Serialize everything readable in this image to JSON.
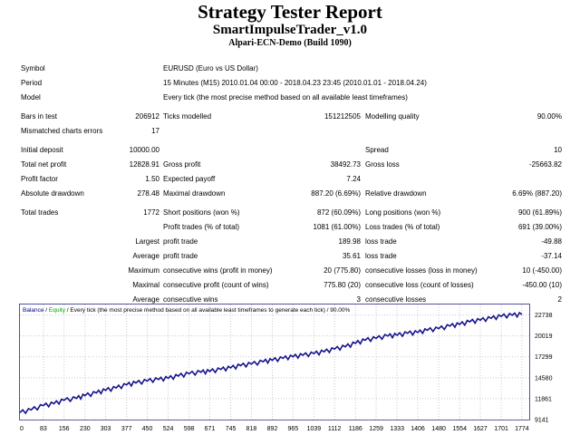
{
  "header": {
    "title": "Strategy Tester Report",
    "subtitle": "SmartImpulseTrader_v1.0",
    "server": "Alpari-ECN-Demo (Build 1090)"
  },
  "info": {
    "symbol_label": "Symbol",
    "symbol_value": "EURUSD (Euro vs US Dollar)",
    "period_label": "Period",
    "period_value": "15 Minutes (M15) 2010.01.04 00:00 - 2018.04.23 23:45 (2010.01.01 - 2018.04.24)",
    "model_label": "Model",
    "model_value": "Every tick (the most precise method based on all available least timeframes)"
  },
  "stats": {
    "bars_label": "Bars in test",
    "bars_value": "206912",
    "ticks_label": "Ticks modelled",
    "ticks_value": "151212505",
    "quality_label": "Modelling quality",
    "quality_value": "90.00%",
    "mismatch_label": "Mismatched charts errors",
    "mismatch_value": "17",
    "deposit_label": "Initial deposit",
    "deposit_value": "10000.00",
    "spread_label": "Spread",
    "spread_value": "10",
    "netprofit_label": "Total net profit",
    "netprofit_value": "12828.91",
    "grossprofit_label": "Gross profit",
    "grossprofit_value": "38492.73",
    "grossloss_label": "Gross loss",
    "grossloss_value": "-25663.82",
    "pf_label": "Profit factor",
    "pf_value": "1.50",
    "payoff_label": "Expected payoff",
    "payoff_value": "7.24",
    "absdd_label": "Absolute drawdown",
    "absdd_value": "278.48",
    "maxdd_label": "Maximal drawdown",
    "maxdd_value": "887.20 (6.69%)",
    "reldd_label": "Relative drawdown",
    "reldd_value": "6.69% (887.20)",
    "trades_label": "Total trades",
    "trades_value": "1772",
    "short_label": "Short positions (won %)",
    "short_value": "872 (60.09%)",
    "long_label": "Long positions (won %)",
    "long_value": "900 (61.89%)",
    "ptrades_label": "Profit trades (% of total)",
    "ptrades_value": "1081 (61.00%)",
    "ltrades_label": "Loss trades (% of total)",
    "ltrades_value": "691 (39.00%)",
    "largest_label": "Largest",
    "largest_profit_label": "profit trade",
    "largest_profit_value": "189.98",
    "largest_loss_label": "loss trade",
    "largest_loss_value": "-49.88",
    "average_label": "Average",
    "average_profit_label": "profit trade",
    "average_profit_value": "35.61",
    "average_loss_label": "loss trade",
    "average_loss_value": "-37.14",
    "maximum_label": "Maximum",
    "max_cw_label": "consecutive wins (profit in money)",
    "max_cw_value": "20 (775.80)",
    "max_cl_label": "consecutive losses (loss in money)",
    "max_cl_value": "10 (-450.00)",
    "maximal_label": "Maximal",
    "maximal_cp_label": "consecutive profit (count of wins)",
    "maximal_cp_value": "775.80 (20)",
    "maximal_closs_label": "consecutive loss (count of losses)",
    "maximal_closs_value": "-450.00 (10)",
    "avgc_label": "Average",
    "avgc_wins_label": "consecutive wins",
    "avgc_wins_value": "3",
    "avgc_losses_label": "consecutive losses",
    "avgc_losses_value": "2"
  },
  "chart_header": {
    "balance": "Balance",
    "sep1": " / ",
    "equity": "Equity",
    "rest": " / Every tick (the most precise method based on all available least timeframes to generate each tick) / 90.00%"
  },
  "colors": {
    "balance": "#00008b",
    "equity": "#00a000",
    "line": "#14148c",
    "grid": "#c8c8c8",
    "border": "#5050a0"
  },
  "chart_data": {
    "type": "line",
    "x_ticks": [
      0,
      83,
      156,
      230,
      303,
      377,
      450,
      524,
      598,
      671,
      745,
      818,
      892,
      965,
      1039,
      1112,
      1186,
      1259,
      1333,
      1406,
      1480,
      1554,
      1627,
      1701,
      1774
    ],
    "y_ticks": [
      9141,
      11861,
      14580,
      17299,
      20019,
      22738
    ],
    "xlim": [
      0,
      1800
    ],
    "ylim": [
      9141,
      24100
    ],
    "series": [
      {
        "x": [
          0,
          40,
          83,
          120,
          156,
          200,
          230,
          270,
          303,
          340,
          377,
          410,
          450,
          490,
          524,
          560,
          598,
          640,
          671,
          710,
          745,
          780,
          818,
          860,
          892,
          930,
          965,
          1000,
          1039,
          1075,
          1112,
          1150,
          1186,
          1220,
          1259,
          1300,
          1333,
          1370,
          1406,
          1440,
          1480,
          1520,
          1554,
          1590,
          1627,
          1665,
          1701,
          1740,
          1774
        ],
        "y": [
          10050,
          10400,
          10950,
          11200,
          11650,
          11900,
          12250,
          12600,
          12950,
          13250,
          13650,
          13900,
          14150,
          14350,
          14500,
          14800,
          15100,
          15300,
          15400,
          15650,
          15850,
          16150,
          16350,
          16650,
          16850,
          17100,
          17300,
          17500,
          17700,
          17950,
          18300,
          18600,
          19050,
          19450,
          19700,
          20000,
          20100,
          20350,
          20450,
          20750,
          20950,
          21300,
          21500,
          21850,
          22050,
          22300,
          22550,
          22700,
          22800
        ]
      }
    ]
  }
}
